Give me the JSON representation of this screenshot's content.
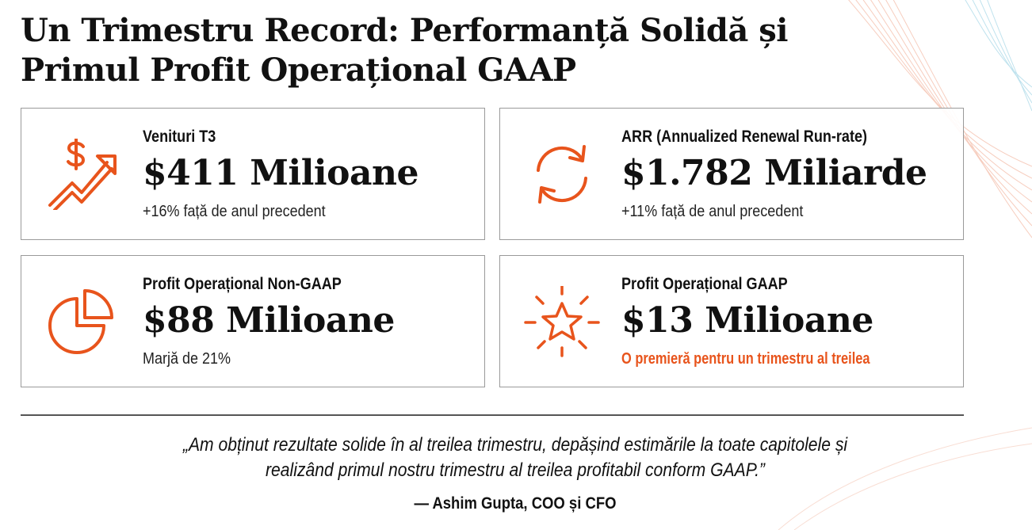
{
  "title_line1": "Un Trimestru Record: Performanță Solidă și",
  "title_line2": "Primul Profit Operațional GAAP",
  "accent_color": "#e8541c",
  "cards": [
    {
      "icon": "dollar-growth-arrow-icon",
      "label": "Venituri T3",
      "value": "$411 Milioane",
      "sub": "+16% față de anul precedent"
    },
    {
      "icon": "refresh-cycle-icon",
      "label": "ARR (Annualized Renewal Run-rate)",
      "value": "$1.782 Miliarde",
      "sub": "+11% față de anul precedent"
    },
    {
      "icon": "pie-chart-icon",
      "label": "Profit Operațional Non-GAAP",
      "value": "$88 Milioane",
      "sub": "Marjă de 21%"
    },
    {
      "icon": "star-burst-icon",
      "label": "Profit Operațional GAAP",
      "value": "$13 Milioane",
      "sub": "O premieră pentru un trimestru al treilea"
    }
  ],
  "quote_line1": "„Am obținut rezultate solide în al treilea trimestru, depășind estimările la toate capitolele și",
  "quote_line2": "realizând primul nostru trimestru al treilea profitabil conform GAAP.”",
  "attribution": "— Ashim Gupta, COO și CFO"
}
